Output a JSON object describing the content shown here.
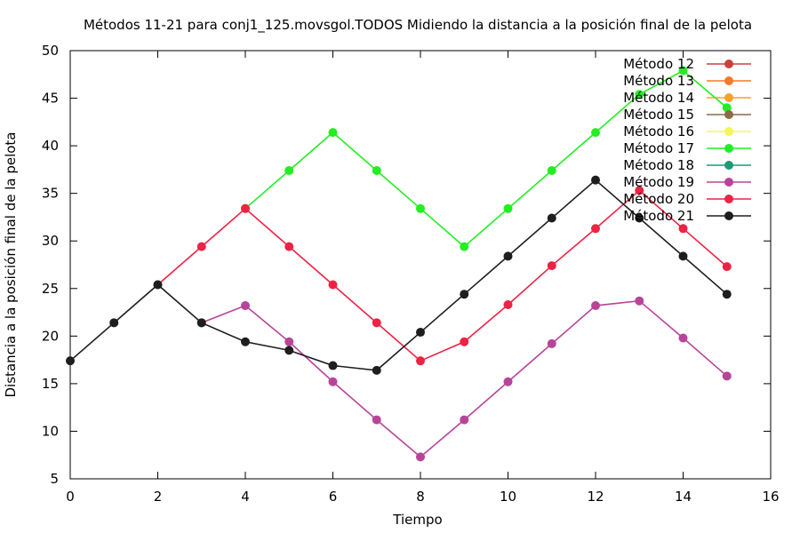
{
  "chart_data": {
    "type": "line",
    "title": "Métodos 11-21 para conj1_125.movsgol.TODOS Midiendo la distancia a la posición final de la pelota",
    "xlabel": "Tiempo",
    "ylabel": "Distancia a la posición final de la pelota",
    "xlim": [
      0,
      16
    ],
    "ylim": [
      5,
      50
    ],
    "x_ticks": [
      0,
      2,
      4,
      6,
      8,
      10,
      12,
      14,
      16
    ],
    "y_ticks": [
      5,
      10,
      15,
      20,
      25,
      30,
      35,
      40,
      45,
      50
    ],
    "grid": false,
    "legend_position": "top-right",
    "series": [
      {
        "name": "Método 12",
        "color": "#c8413b",
        "x": [],
        "y": []
      },
      {
        "name": "Método 13",
        "color": "#f47a2c",
        "x": [],
        "y": []
      },
      {
        "name": "Método 14",
        "color": "#f5a02f",
        "x": [],
        "y": []
      },
      {
        "name": "Método 15",
        "color": "#8c6a4a",
        "x": [],
        "y": []
      },
      {
        "name": "Método 16",
        "color": "#f5f55a",
        "x": [],
        "y": []
      },
      {
        "name": "Método 17",
        "color": "#22ee22",
        "x": [
          4,
          5,
          6,
          7,
          8,
          9,
          10,
          11,
          12,
          13,
          14,
          15
        ],
        "y": [
          33.4,
          37.4,
          41.4,
          37.4,
          33.4,
          29.4,
          33.4,
          37.4,
          41.4,
          45.4,
          47.9,
          44.0
        ]
      },
      {
        "name": "Método 18",
        "color": "#1a9a78",
        "x": [],
        "y": []
      },
      {
        "name": "Método 19",
        "color": "#b8449a",
        "x": [
          3,
          4,
          5,
          6,
          7,
          8,
          9,
          10,
          11,
          12,
          13,
          14,
          15
        ],
        "y": [
          21.4,
          23.2,
          19.4,
          15.2,
          11.2,
          7.3,
          11.2,
          15.2,
          19.2,
          23.2,
          23.7,
          19.8,
          15.8
        ]
      },
      {
        "name": "Método 20",
        "color": "#ee2244",
        "x": [
          2,
          3,
          4,
          5,
          6,
          7,
          8,
          9,
          10,
          11,
          12,
          13,
          14,
          15
        ],
        "y": [
          25.4,
          29.4,
          33.4,
          29.4,
          25.4,
          21.4,
          17.4,
          19.4,
          23.3,
          27.4,
          31.3,
          35.3,
          31.3,
          27.3
        ]
      },
      {
        "name": "Método 21",
        "color": "#1e1e1e",
        "x": [
          0,
          1,
          2,
          3,
          4,
          5,
          6,
          7,
          8,
          9,
          10,
          11,
          12,
          13,
          14,
          15
        ],
        "y": [
          17.4,
          21.4,
          25.4,
          21.4,
          19.4,
          18.5,
          16.9,
          16.4,
          20.4,
          24.4,
          28.4,
          32.4,
          36.4,
          32.4,
          28.4,
          24.4
        ]
      }
    ]
  }
}
